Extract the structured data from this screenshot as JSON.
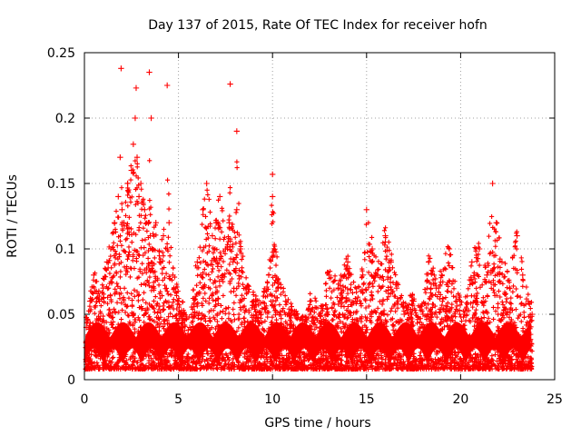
{
  "chart_data": {
    "type": "scatter",
    "title": "Day 137 of 2015, Rate Of TEC Index for receiver hofn",
    "xlabel": "GPS time / hours",
    "ylabel": "ROTI / TECUs",
    "xlim": [
      0,
      25
    ],
    "ylim": [
      0,
      0.25
    ],
    "xticks": [
      0,
      5,
      10,
      15,
      20,
      25
    ],
    "xtick_labels": [
      "0",
      "5",
      "10",
      "15",
      "20",
      "25"
    ],
    "yticks": [
      0,
      0.05,
      0.1,
      0.15,
      0.2,
      0.25
    ],
    "ytick_labels": [
      "0",
      "0.05",
      "0.1",
      "0.15",
      "0.2",
      "0.25"
    ],
    "grid": true,
    "legend": "none",
    "marker": "plus",
    "series": [
      {
        "color": "#ff0000",
        "x": [
          0.1,
          0.3,
          0.5,
          0.8,
          1.0,
          1.2,
          1.4,
          1.6,
          1.8,
          1.9,
          2.0,
          2.1,
          2.3,
          2.5,
          2.6,
          2.7,
          2.8,
          2.9,
          3.0,
          3.2,
          3.4,
          3.5,
          3.6,
          3.8,
          4.0,
          4.2,
          4.4,
          4.5,
          4.7,
          5.0,
          5.3,
          5.6,
          6.0,
          6.3,
          6.5,
          6.8,
          7.0,
          7.2,
          7.5,
          7.7,
          7.9,
          8.1,
          8.3,
          8.6,
          9.0,
          9.4,
          9.8,
          10.0,
          10.3,
          10.7,
          11.0,
          11.5,
          12.0,
          12.5,
          13.0,
          13.5,
          14.0,
          14.5,
          14.8,
          15.0,
          15.3,
          15.6,
          16.0,
          16.3,
          16.6,
          17.0,
          17.5,
          18.0,
          18.3,
          18.7,
          19.0,
          19.4,
          19.8,
          20.2,
          20.6,
          21.0,
          21.4,
          21.7,
          21.9,
          22.2,
          22.6,
          23.0,
          23.3,
          23.6,
          23.8,
          1.95,
          3.45,
          4.4,
          7.75,
          2.75,
          3.55,
          8.1,
          10.0
        ],
        "y": [
          0.04,
          0.06,
          0.08,
          0.06,
          0.07,
          0.09,
          0.1,
          0.12,
          0.14,
          0.17,
          0.13,
          0.12,
          0.15,
          0.16,
          0.18,
          0.2,
          0.17,
          0.14,
          0.15,
          0.13,
          0.12,
          0.11,
          0.1,
          0.12,
          0.09,
          0.11,
          0.1,
          0.12,
          0.08,
          0.06,
          0.05,
          0.04,
          0.09,
          0.13,
          0.15,
          0.11,
          0.12,
          0.14,
          0.1,
          0.12,
          0.09,
          0.13,
          0.1,
          0.07,
          0.06,
          0.05,
          0.08,
          0.14,
          0.07,
          0.06,
          0.05,
          0.04,
          0.06,
          0.05,
          0.08,
          0.07,
          0.09,
          0.06,
          0.08,
          0.13,
          0.1,
          0.08,
          0.11,
          0.09,
          0.07,
          0.05,
          0.06,
          0.05,
          0.09,
          0.07,
          0.08,
          0.1,
          0.06,
          0.05,
          0.09,
          0.1,
          0.08,
          0.15,
          0.12,
          0.09,
          0.07,
          0.11,
          0.08,
          0.06,
          0.05,
          0.238,
          0.235,
          0.225,
          0.226,
          0.223,
          0.2,
          0.19,
          0.157
        ]
      }
    ]
  }
}
